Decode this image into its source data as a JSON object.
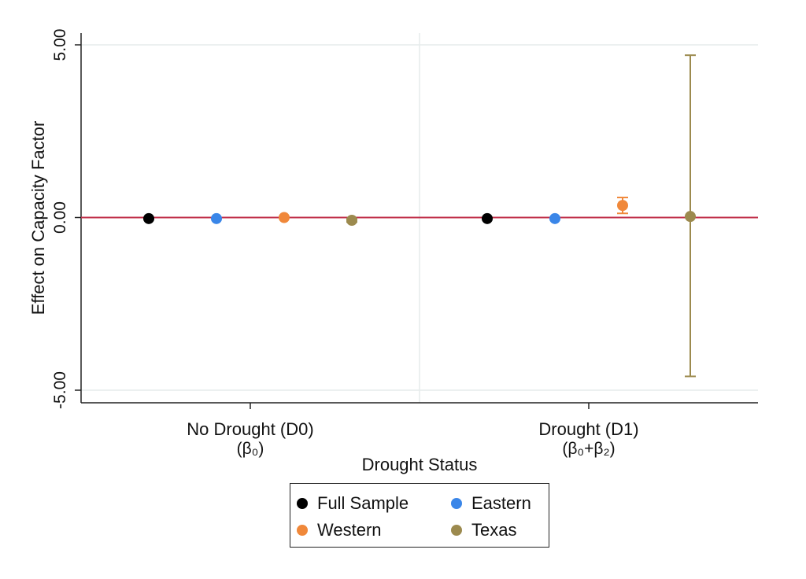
{
  "chart_data": {
    "type": "scatter",
    "ylabel": "Effect on Capacity Factor",
    "xlabel": "Drought Status",
    "ylim": [
      -5.4,
      5.4
    ],
    "yticks": [
      5,
      0,
      -5
    ],
    "ytick_labels": [
      "5.00",
      "0.00",
      "-5.00"
    ],
    "categories": [
      {
        "label": "No Drought (D0)",
        "sublabel": "(β₀)"
      },
      {
        "label": "Drought (D1)",
        "sublabel": "(β₀+β₂)"
      }
    ],
    "reference_line": {
      "y": 0,
      "color": "#c0304a"
    },
    "grid": true,
    "legend_position": "bottom",
    "series": [
      {
        "name": "Full Sample",
        "color": "#000000",
        "points": [
          {
            "category": 0,
            "y": -0.03,
            "lo": -0.06,
            "hi": 0.0
          },
          {
            "category": 1,
            "y": -0.03,
            "lo": -0.06,
            "hi": 0.0
          }
        ]
      },
      {
        "name": "Eastern",
        "color": "#3a86e8",
        "points": [
          {
            "category": 0,
            "y": -0.03,
            "lo": -0.05,
            "hi": -0.01
          },
          {
            "category": 1,
            "y": -0.03,
            "lo": -0.05,
            "hi": -0.01
          }
        ]
      },
      {
        "name": "Western",
        "color": "#f0883a",
        "points": [
          {
            "category": 0,
            "y": 0.0,
            "lo": -0.02,
            "hi": 0.02
          },
          {
            "category": 1,
            "y": 0.35,
            "lo": 0.12,
            "hi": 0.58
          }
        ]
      },
      {
        "name": "Texas",
        "color": "#9c8a4e",
        "points": [
          {
            "category": 0,
            "y": -0.08,
            "lo": -0.13,
            "hi": -0.03
          },
          {
            "category": 1,
            "y": 0.03,
            "lo": -4.6,
            "hi": 4.7
          }
        ]
      }
    ]
  }
}
